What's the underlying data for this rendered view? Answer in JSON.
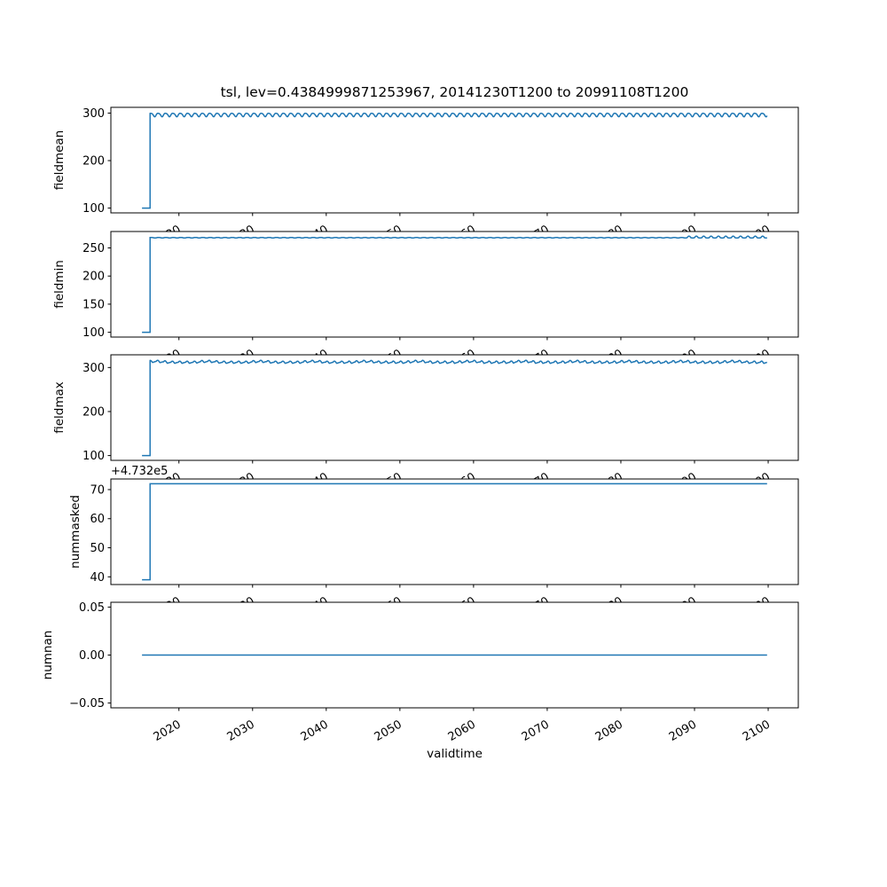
{
  "figure": {
    "title": "tsl, lev=0.4384999871253967, 20141230T1200 to 20991108T1200",
    "xlabel": "validtime",
    "background": "#ffffff",
    "line_color": "#1f77b4",
    "frame_color": "#000000",
    "line_width": 1.5,
    "xlim": [
      2010.76,
      2104.09
    ],
    "data_x_range": [
      2014.99,
      2099.85
    ],
    "xticks": [
      {
        "v": 2020,
        "label": "2020"
      },
      {
        "v": 2030,
        "label": "2030"
      },
      {
        "v": 2040,
        "label": "2040"
      },
      {
        "v": 2050,
        "label": "2050"
      },
      {
        "v": 2060,
        "label": "2060"
      },
      {
        "v": 2070,
        "label": "2070"
      },
      {
        "v": 2080,
        "label": "2080"
      },
      {
        "v": 2090,
        "label": "2090"
      },
      {
        "v": 2100,
        "label": "2100"
      }
    ]
  },
  "chart_data": [
    {
      "type": "line",
      "name": "fieldmean",
      "ylabel": "fieldmean",
      "ylim": [
        89.9,
        312.2
      ],
      "yticks": [
        {
          "v": 100,
          "label": "100"
        },
        {
          "v": 200,
          "label": "200"
        },
        {
          "v": 300,
          "label": "300"
        }
      ],
      "offset_text": "",
      "series": {
        "pre": {
          "x0": 2014.99,
          "x1": 2016.08,
          "y": 100
        },
        "main": {
          "x0": 2016.08,
          "x1": 2099.85,
          "mean": 296.6,
          "waves": [
            {
              "f": 1,
              "a": 3.6,
              "p": 0.3
            },
            {
              "f": 2,
              "a": 0.7,
              "p": 1.8
            }
          ],
          "bumps": []
        }
      }
    },
    {
      "type": "line",
      "name": "fieldmin",
      "ylabel": "fieldmin",
      "ylim": [
        91.5,
        279.2
      ],
      "yticks": [
        {
          "v": 100,
          "label": "100"
        },
        {
          "v": 150,
          "label": "150"
        },
        {
          "v": 200,
          "label": "200"
        },
        {
          "v": 250,
          "label": "250"
        }
      ],
      "offset_text": "",
      "series": {
        "pre": {
          "x0": 2014.99,
          "x1": 2016.08,
          "y": 100
        },
        "main": {
          "x0": 2016.08,
          "x1": 2099.85,
          "mean": 268.2,
          "waves": [
            {
              "f": 1,
              "a": 0.45,
              "p": 0
            }
          ],
          "bumps": [
            {
              "f": 1,
              "a": 2.4,
              "p": 0,
              "x0": 2089,
              "x1": 2099.85
            }
          ]
        }
      }
    },
    {
      "type": "line",
      "name": "fieldmax",
      "ylabel": "fieldmax",
      "ylim": [
        89.1,
        328.9
      ],
      "yticks": [
        {
          "v": 100,
          "label": "100"
        },
        {
          "v": 200,
          "label": "200"
        },
        {
          "v": 300,
          "label": "300"
        }
      ],
      "offset_text": "",
      "series": {
        "pre": {
          "x0": 2014.99,
          "x1": 2016.08,
          "y": 100
        },
        "main": {
          "x0": 2016.08,
          "x1": 2099.85,
          "mean": 310.6,
          "waves": [
            {
              "f": 1,
              "a": 1.1,
              "p": 2.4
            }
          ],
          "bumps": [
            {
              "f": 1,
              "a": 4.0,
              "p": 0.6
            },
            {
              "f": 0.14,
              "a": 2.0,
              "p": 0
            }
          ]
        }
      }
    },
    {
      "type": "line",
      "name": "nummasked",
      "ylabel": "nummasked",
      "ylim": [
        37.35,
        73.65
      ],
      "yticks": [
        {
          "v": 40,
          "label": "40"
        },
        {
          "v": 50,
          "label": "50"
        },
        {
          "v": 60,
          "label": "60"
        },
        {
          "v": 70,
          "label": "70"
        }
      ],
      "offset_text": "+4.732e5",
      "series": {
        "pre": {
          "x0": 2014.99,
          "x1": 2016.08,
          "y": 39
        },
        "main": {
          "x0": 2016.08,
          "x1": 2099.85,
          "mean": 72,
          "waves": [],
          "bumps": []
        }
      }
    },
    {
      "type": "line",
      "name": "numnan",
      "ylabel": "numnan",
      "ylim": [
        -0.055,
        0.055
      ],
      "yticks": [
        {
          "v": -0.05,
          "label": "−0.05"
        },
        {
          "v": 0,
          "label": "0.00"
        },
        {
          "v": 0.05,
          "label": "0.05"
        }
      ],
      "offset_text": "",
      "series": {
        "pre": null,
        "main": {
          "x0": 2014.99,
          "x1": 2099.85,
          "mean": 0,
          "waves": [],
          "bumps": []
        }
      }
    }
  ]
}
